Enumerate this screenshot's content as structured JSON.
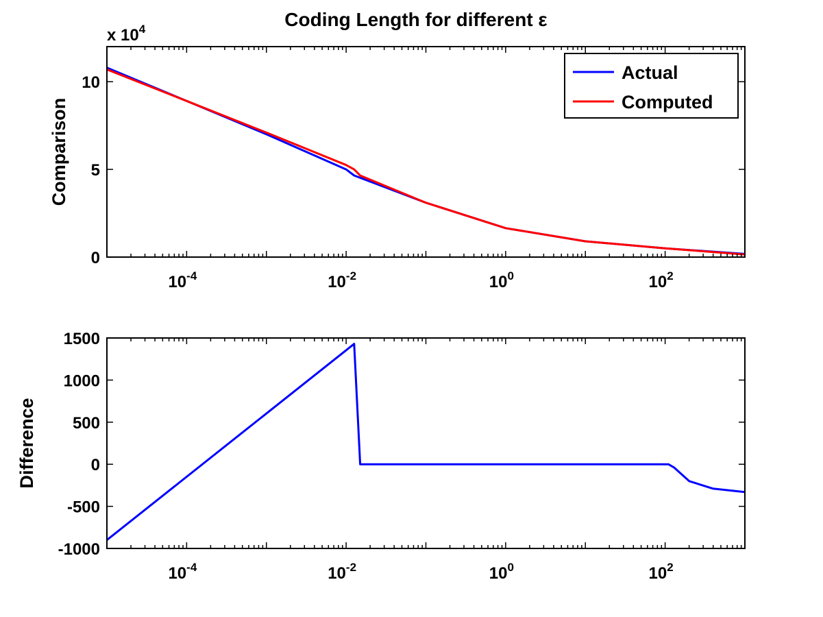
{
  "figure": {
    "title": "Coding Length for different ε"
  },
  "colors": {
    "actual": "#0000ff",
    "computed": "#ff0000",
    "axes": "#000000",
    "background": "#ffffff"
  },
  "chart_data": [
    {
      "type": "line",
      "title": "Coding Length for different ε",
      "xlabel": "",
      "ylabel": "Comparison",
      "xscale": "log",
      "xlim": [
        1e-05,
        1000
      ],
      "ylim": [
        0,
        120000
      ],
      "ytick_exponent_label": "x 10^4",
      "xticks": [
        {
          "value": 0.0001,
          "base": "10",
          "exp": "-4"
        },
        {
          "value": 0.01,
          "base": "10",
          "exp": "-2"
        },
        {
          "value": 1,
          "base": "10",
          "exp": "0"
        },
        {
          "value": 100,
          "base": "10",
          "exp": "2"
        }
      ],
      "yticks": [
        {
          "value": 0,
          "label": "0"
        },
        {
          "value": 50000,
          "label": "5"
        },
        {
          "value": 100000,
          "label": "10"
        }
      ],
      "legend": {
        "placement": "top-right",
        "entries": [
          "Actual",
          "Computed"
        ]
      },
      "grid": false,
      "series": [
        {
          "name": "Actual",
          "color": "#0000ff",
          "x": [
            1e-05,
            0.0001,
            0.001,
            0.01,
            0.0126,
            0.1,
            1,
            10,
            100,
            1000
          ],
          "y": [
            108000,
            89000,
            70000,
            50000,
            46500,
            31000,
            16500,
            9000,
            5000,
            1800
          ]
        },
        {
          "name": "Computed",
          "color": "#ff0000",
          "x": [
            1e-05,
            0.0001,
            0.001,
            0.01,
            0.0126,
            0.015,
            0.1,
            1,
            10,
            100,
            1000
          ],
          "y": [
            107000,
            89000,
            71000,
            52500,
            50000,
            46500,
            31000,
            16500,
            9000,
            5000,
            1500
          ]
        }
      ]
    },
    {
      "type": "line",
      "title": "",
      "xlabel": "",
      "ylabel": "Difference",
      "xscale": "log",
      "xlim": [
        1e-05,
        1000
      ],
      "ylim": [
        -1000,
        1500
      ],
      "xticks": [
        {
          "value": 0.0001,
          "base": "10",
          "exp": "-4"
        },
        {
          "value": 0.01,
          "base": "10",
          "exp": "-2"
        },
        {
          "value": 1,
          "base": "10",
          "exp": "0"
        },
        {
          "value": 100,
          "base": "10",
          "exp": "2"
        }
      ],
      "yticks": [
        {
          "value": -1000,
          "label": "-1000"
        },
        {
          "value": -500,
          "label": "-500"
        },
        {
          "value": 0,
          "label": "0"
        },
        {
          "value": 500,
          "label": "500"
        },
        {
          "value": 1000,
          "label": "1000"
        },
        {
          "value": 1500,
          "label": "1500"
        }
      ],
      "grid": false,
      "series": [
        {
          "name": "",
          "color": "#0000ff",
          "x": [
            1e-05,
            0.0126,
            0.015,
            1,
            110,
            130,
            200,
            400,
            1000
          ],
          "y": [
            -900,
            1430,
            0,
            0,
            0,
            -40,
            -200,
            -290,
            -330
          ]
        }
      ]
    }
  ]
}
